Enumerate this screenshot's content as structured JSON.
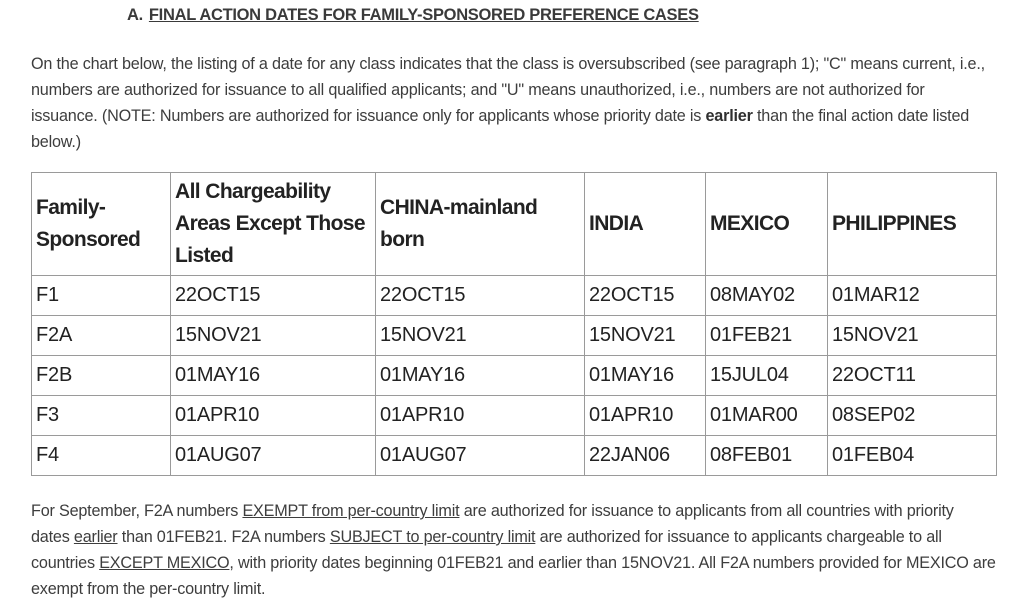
{
  "section": {
    "prefix": "A.",
    "title": "FINAL ACTION DATES FOR FAMILY-SPONSORED PREFERENCE CASES"
  },
  "intro": {
    "text1": "On the chart below, the listing of a date for any class indicates that the class is oversubscribed (see paragraph 1); \"C\" means current, i.e., numbers are authorized for issuance to all qualified applicants; and \"U\" means unauthorized, i.e., numbers are not authorized for issuance. (NOTE: Numbers are authorized for issuance only for applicants whose priority date is ",
    "bold": "earlier",
    "text2": " than the final action date listed below.)"
  },
  "table": {
    "headers": [
      "Family-Sponsored",
      "All Chargeability Areas Except Those Listed",
      "CHINA-mainland born",
      "INDIA",
      "MEXICO",
      "PHILIPPINES"
    ],
    "rows": [
      [
        "F1",
        "22OCT15",
        "22OCT15",
        "22OCT15",
        "08MAY02",
        "01MAR12"
      ],
      [
        "F2A",
        "15NOV21",
        "15NOV21",
        "15NOV21",
        "01FEB21",
        "15NOV21"
      ],
      [
        "F2B",
        "01MAY16",
        "01MAY16",
        "01MAY16",
        "15JUL04",
        "22OCT11"
      ],
      [
        "F3",
        "01APR10",
        "01APR10",
        "01APR10",
        "01MAR00",
        "08SEP02"
      ],
      [
        "F4",
        "01AUG07",
        "01AUG07",
        "22JAN06",
        "08FEB01",
        "01FEB04"
      ]
    ]
  },
  "footer": {
    "t1": "For September, F2A numbers ",
    "u1": "EXEMPT from per-country limit",
    "t2": " are authorized for issuance to applicants from all countries with priority dates ",
    "u2": "earlier",
    "t3": " than 01FEB21. F2A numbers ",
    "u3": "SUBJECT to per-country limit",
    "t4": " are authorized for issuance to applicants chargeable to all countries ",
    "u4": "EXCEPT MEXICO",
    "t5": ", with priority dates beginning 01FEB21 and earlier than 15NOV21. All F2A numbers provided for MEXICO are exempt from the per-country limit."
  }
}
